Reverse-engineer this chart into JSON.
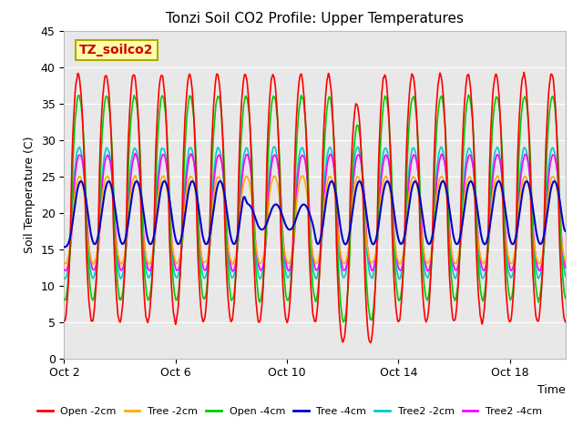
{
  "title": "Tonzi Soil CO2 Profile: Upper Temperatures",
  "xlabel": "Time",
  "ylabel": "Soil Temperature (C)",
  "ylim": [
    0,
    45
  ],
  "xlim": [
    2,
    20
  ],
  "xticks": [
    2,
    6,
    10,
    14,
    18
  ],
  "xticklabels": [
    "Oct 2",
    "Oct 6",
    "Oct 10",
    "Oct 14",
    "Oct 18"
  ],
  "yticks": [
    0,
    5,
    10,
    15,
    20,
    25,
    30,
    35,
    40,
    45
  ],
  "legend_labels": [
    "Open -2cm",
    "Tree -2cm",
    "Open -4cm",
    "Tree -4cm",
    "Tree2 -2cm",
    "Tree2 -4cm"
  ],
  "legend_colors": [
    "#ff0000",
    "#ffaa00",
    "#00cc00",
    "#0000cc",
    "#00cccc",
    "#ff00ff"
  ],
  "annotation_text": "TZ_soilco2",
  "annotation_bg": "#ffffaa",
  "annotation_border": "#aaaa00",
  "plot_bg": "#e8e8e8",
  "n_days": 18,
  "pts_per_day": 96,
  "start_day": 2
}
